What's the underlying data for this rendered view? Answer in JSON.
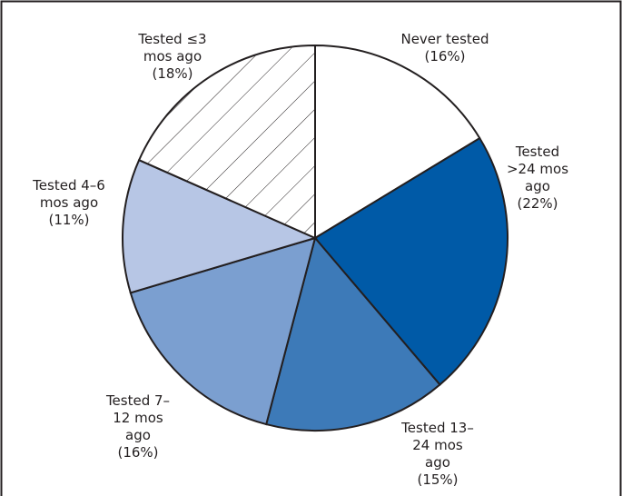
{
  "chart_data": {
    "type": "pie",
    "categories": [
      "Never tested",
      "Tested >24 mos ago",
      "Tested 13–24 mos ago",
      "Tested 7–12 mos ago",
      "Tested 4–6 mos ago",
      "Tested ≤3 mos ago"
    ],
    "values": [
      16,
      22,
      15,
      16,
      11,
      18
    ],
    "value_labels": [
      "(16%)",
      "(22%)",
      "(15%)",
      "(16%)",
      "(11%)",
      "(18%)"
    ],
    "colors": [
      "#ffffff",
      "#005aa7",
      "#3d7ab8",
      "#7b9fd0",
      "#b7c6e5",
      "#ffffff"
    ],
    "hatch": [
      false,
      false,
      false,
      false,
      false,
      true
    ]
  }
}
